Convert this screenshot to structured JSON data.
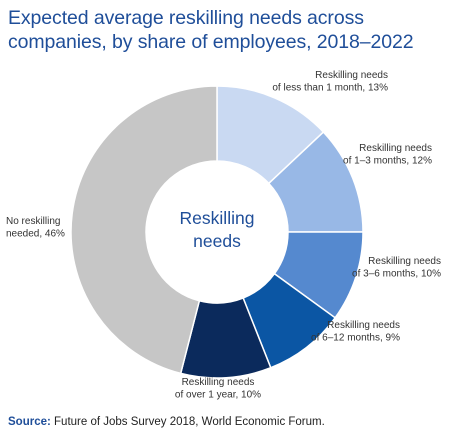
{
  "chart_data": {
    "type": "pie",
    "title_lines": [
      "Expected average reskilling needs across",
      "companies, by share of employees, 2018–2022"
    ],
    "center_label_lines": [
      "Reskilling",
      "needs"
    ],
    "categories": [
      "Reskilling needs of less than 1 month",
      "Reskilling needs of 1–3 months",
      "Reskilling needs of 3–6 months",
      "Reskilling needs of 6–12 months",
      "Reskilling needs of over 1 year",
      "No reskilling needed"
    ],
    "values": [
      13,
      12,
      10,
      9,
      10,
      46
    ],
    "unit": "%",
    "colors": [
      "#c9d9f2",
      "#98b8e6",
      "#5589cf",
      "#0b56a4",
      "#0b2a5c",
      "#c6c6c6"
    ],
    "labels": [
      [
        "Reskilling needs",
        "of less than 1 month, 13%"
      ],
      [
        "Reskilling needs",
        "of 1–3 months, 12%"
      ],
      [
        "Reskilling needs",
        "of 3–6 months, 10%"
      ],
      [
        "Reskilling needs",
        "of 6–12 months, 9%"
      ],
      [
        "Reskilling needs",
        "of over 1 year, 10%"
      ],
      [
        "No reskilling",
        "needed, 46%"
      ]
    ]
  },
  "source": {
    "lead": "Source:",
    "text": " Future of Jobs Survey 2018, World Economic Forum."
  }
}
